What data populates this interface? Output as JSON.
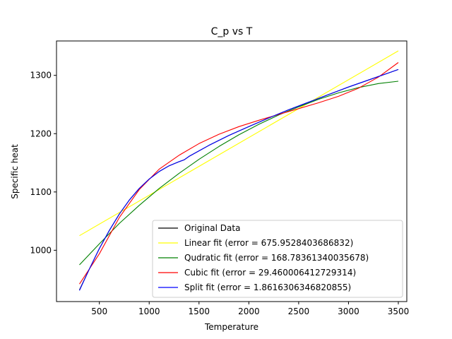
{
  "chart_data": {
    "type": "line",
    "title": "C_p vs T",
    "xlabel": "Temperature",
    "ylabel": "Specific heat",
    "xlim": [
      70,
      3585
    ],
    "ylim": [
      912,
      1359
    ],
    "xticks": [
      500,
      1000,
      1500,
      2000,
      2500,
      3000,
      3500
    ],
    "yticks": [
      1000,
      1100,
      1200,
      1300
    ],
    "grid": false,
    "legend_position": "lower right",
    "series": [
      {
        "name": "Original Data",
        "color": "#000000",
        "x": [
          300,
          400,
          500,
          600,
          700,
          800,
          900,
          1000,
          1100,
          1200,
          1300,
          1350,
          1400,
          1600,
          1800,
          2000,
          2200,
          2400,
          2600,
          2800,
          3000,
          3200,
          3400,
          3500
        ],
        "y": [
          932,
          968,
          1003,
          1034,
          1062,
          1086,
          1106,
          1122,
          1135,
          1145,
          1152,
          1155,
          1161,
          1180,
          1197,
          1212,
          1227,
          1241,
          1254,
          1267,
          1280,
          1292,
          1304,
          1310
        ]
      },
      {
        "name": "Linear fit (error = 675.9528403686832)",
        "color": "#ffff00",
        "x": [
          300,
          3500
        ],
        "y": [
          1025,
          1342
        ]
      },
      {
        "name": "Qudratic fit (error = 168.78361340035678)",
        "color": "#008000",
        "x": [
          300,
          500,
          700,
          900,
          1100,
          1300,
          1500,
          1700,
          1900,
          2100,
          2300,
          2500,
          2700,
          2900,
          3100,
          3300,
          3500
        ],
        "y": [
          975,
          1011,
          1046,
          1077,
          1106,
          1132,
          1156,
          1178,
          1198,
          1216,
          1232,
          1246,
          1259,
          1270,
          1279,
          1286,
          1290
        ]
      },
      {
        "name": "Cubic fit (error = 29.460006412729314)",
        "color": "#ff0000",
        "x": [
          300,
          500,
          700,
          900,
          1100,
          1300,
          1500,
          1700,
          1900,
          2100,
          2300,
          2500,
          2700,
          2900,
          3100,
          3300,
          3500
        ],
        "y": [
          942,
          994,
          1056,
          1104,
          1139,
          1163,
          1183,
          1199,
          1212,
          1223,
          1233,
          1243,
          1253,
          1264,
          1278,
          1297,
          1322
        ]
      },
      {
        "name": "Split fit (error = 1.8616306346820855)",
        "color": "#0000ff",
        "x": [
          300,
          400,
          500,
          600,
          700,
          800,
          900,
          1000,
          1100,
          1200,
          1300,
          1350,
          1400,
          1600,
          1800,
          2000,
          2200,
          2400,
          2600,
          2800,
          3000,
          3200,
          3400,
          3500
        ],
        "y": [
          931,
          968,
          1003,
          1034,
          1062,
          1086,
          1106,
          1122,
          1135,
          1145,
          1152,
          1155,
          1161,
          1180,
          1197,
          1212,
          1227,
          1241,
          1254,
          1267,
          1280,
          1292,
          1304,
          1310
        ]
      }
    ]
  }
}
